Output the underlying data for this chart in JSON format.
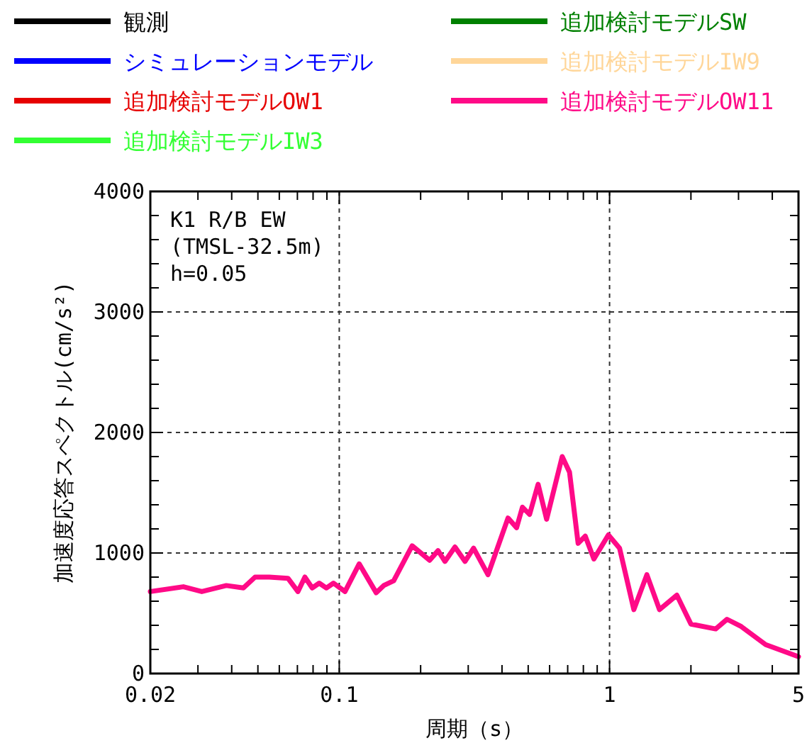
{
  "chart_data": {
    "type": "line",
    "xlabel": "周期（s）",
    "ylabel": "加速度応答スペクトル(cm/s²)",
    "log": "x",
    "grid": true,
    "legend": "top",
    "line_style": "solid",
    "marker": "none",
    "annotations": [
      "K1 R/B EW",
      "(TMSL-32.5m)",
      "h=0.05"
    ],
    "xlim": [
      0.02,
      5
    ],
    "ylim": [
      0,
      4000
    ],
    "xticks": [
      0.02,
      {
        "value": 0.03,
        "label": null
      },
      {
        "value": 0.04,
        "label": null
      },
      {
        "value": 0.05,
        "label": null
      },
      {
        "value": 0.06,
        "label": null
      },
      {
        "value": 0.07,
        "label": null
      },
      {
        "value": 0.08,
        "label": null
      },
      {
        "value": 0.09,
        "label": null
      },
      0.1,
      {
        "value": 0.2,
        "label": null
      },
      {
        "value": 0.3,
        "label": null
      },
      {
        "value": 0.4,
        "label": null
      },
      {
        "value": 0.5,
        "label": null
      },
      {
        "value": 0.6,
        "label": null
      },
      {
        "value": 0.7,
        "label": null
      },
      {
        "value": 0.8,
        "label": null
      },
      {
        "value": 0.9,
        "label": null
      },
      1,
      {
        "value": 2,
        "label": null
      },
      {
        "value": 3,
        "label": null
      },
      {
        "value": 4,
        "label": null
      },
      5
    ],
    "yticks": [
      0,
      {
        "value": 200,
        "label": null
      },
      {
        "value": 400,
        "label": null
      },
      {
        "value": 600,
        "label": null
      },
      {
        "value": 800,
        "label": null
      },
      1000,
      {
        "value": 1200,
        "label": null
      },
      {
        "value": 1400,
        "label": null
      },
      {
        "value": 1600,
        "label": null
      },
      {
        "value": 1800,
        "label": null
      },
      2000,
      {
        "value": 2200,
        "label": null
      },
      {
        "value": 2400,
        "label": null
      },
      {
        "value": 2600,
        "label": null
      },
      {
        "value": 2800,
        "label": null
      },
      3000,
      {
        "value": 3200,
        "label": null
      },
      {
        "value": 3400,
        "label": null
      },
      {
        "value": 3600,
        "label": null
      },
      {
        "value": 3800,
        "label": null
      },
      4000
    ],
    "x": [
      0.02,
      0.0265,
      0.031,
      0.0382,
      0.0442,
      0.0488,
      0.0551,
      0.0646,
      0.0703,
      0.0746,
      0.0794,
      0.0843,
      0.0896,
      0.0952,
      0.105,
      0.1185,
      0.137,
      0.146,
      0.159,
      0.186,
      0.216,
      0.232,
      0.246,
      0.268,
      0.292,
      0.314,
      0.355,
      0.421,
      0.453,
      0.476,
      0.506,
      0.544,
      0.585,
      0.668,
      0.711,
      0.765,
      0.813,
      0.875,
      0.99,
      1.089,
      1.23,
      1.374,
      1.53,
      1.774,
      2.0,
      2.47,
      2.72,
      3.07,
      3.78,
      5.0
    ],
    "series": [
      {
        "name": "観測",
        "color": "#000000",
        "values": [
          null,
          null,
          null,
          null,
          null,
          null,
          null,
          null,
          null,
          null,
          null,
          null,
          null,
          null,
          null,
          null,
          null,
          null,
          null,
          null,
          null,
          null,
          null,
          null,
          null,
          null,
          null,
          null,
          null,
          null,
          null,
          null,
          null,
          null,
          null,
          null,
          null,
          null,
          null,
          null,
          null,
          null,
          null,
          null,
          null,
          null,
          null,
          null,
          null,
          null
        ]
      },
      {
        "name": "シミュレーションモデル",
        "color": "#0000ff",
        "values": [
          null,
          null,
          null,
          null,
          null,
          null,
          null,
          null,
          null,
          null,
          null,
          null,
          null,
          null,
          null,
          null,
          null,
          null,
          null,
          null,
          null,
          null,
          null,
          null,
          null,
          null,
          null,
          null,
          null,
          null,
          null,
          null,
          null,
          null,
          null,
          null,
          null,
          null,
          null,
          null,
          null,
          null,
          null,
          null,
          null,
          null,
          null,
          null,
          null,
          null
        ]
      },
      {
        "name": "追加検討モデルOW1",
        "color": "#e60000",
        "values": [
          null,
          null,
          null,
          null,
          null,
          null,
          null,
          null,
          null,
          null,
          null,
          null,
          null,
          null,
          null,
          null,
          null,
          null,
          null,
          null,
          null,
          null,
          null,
          null,
          null,
          null,
          null,
          null,
          null,
          null,
          null,
          null,
          null,
          null,
          null,
          null,
          null,
          null,
          null,
          null,
          null,
          null,
          null,
          null,
          null,
          null,
          null,
          null,
          null,
          null
        ]
      },
      {
        "name": "追加検討モデルIW3",
        "color": "#33ff33",
        "values": [
          null,
          null,
          null,
          null,
          null,
          null,
          null,
          null,
          null,
          null,
          null,
          null,
          null,
          null,
          null,
          null,
          null,
          null,
          null,
          null,
          null,
          null,
          null,
          null,
          null,
          null,
          null,
          null,
          null,
          null,
          null,
          null,
          null,
          null,
          null,
          null,
          null,
          null,
          null,
          null,
          null,
          null,
          null,
          null,
          null,
          null,
          null,
          null,
          null,
          null
        ]
      },
      {
        "name": "追加検討モデルSW",
        "color": "#008000",
        "values": [
          null,
          null,
          null,
          null,
          null,
          null,
          null,
          null,
          null,
          null,
          null,
          null,
          null,
          null,
          null,
          null,
          null,
          null,
          null,
          null,
          null,
          null,
          null,
          null,
          null,
          null,
          null,
          null,
          null,
          null,
          null,
          null,
          null,
          null,
          null,
          null,
          null,
          null,
          null,
          null,
          null,
          null,
          null,
          null,
          null,
          null,
          null,
          null,
          null,
          null
        ]
      },
      {
        "name": "追加検討モデルIW9",
        "color": "#ffd699",
        "values": [
          null,
          null,
          null,
          null,
          null,
          null,
          null,
          null,
          null,
          null,
          null,
          null,
          null,
          null,
          null,
          null,
          null,
          null,
          null,
          null,
          null,
          null,
          null,
          null,
          null,
          null,
          null,
          null,
          null,
          null,
          null,
          null,
          null,
          null,
          null,
          null,
          null,
          null,
          null,
          null,
          null,
          null,
          null,
          null,
          null,
          null,
          null,
          null,
          null,
          null
        ]
      },
      {
        "name": "追加検討モデルOW11",
        "color": "#ff0a87",
        "values": [
          680,
          720,
          680,
          730,
          710,
          800,
          800,
          790,
          680,
          800,
          710,
          750,
          710,
          750,
          680,
          910,
          670,
          730,
          770,
          1060,
          940,
          1020,
          930,
          1050,
          930,
          1040,
          820,
          1290,
          1210,
          1380,
          1320,
          1570,
          1280,
          1800,
          1670,
          1080,
          1140,
          950,
          1150,
          1040,
          530,
          820,
          530,
          650,
          410,
          370,
          450,
          390,
          240,
          140
        ]
      }
    ]
  }
}
